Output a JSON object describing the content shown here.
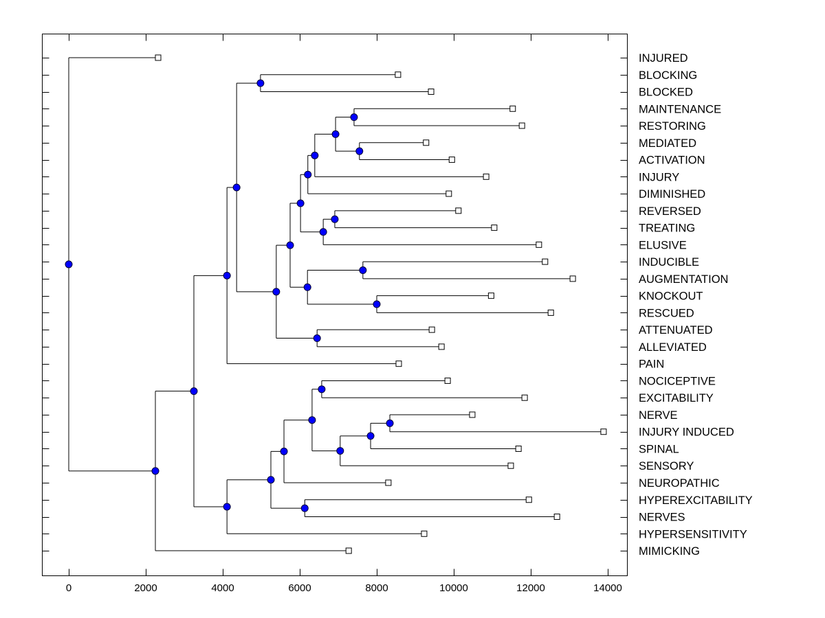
{
  "chart_data": {
    "type": "dendrogram",
    "title": "",
    "xlabel": "",
    "ylabel": "",
    "xlim": [
      -700,
      14500
    ],
    "x_ticks": [
      0,
      2000,
      4000,
      6000,
      8000,
      10000,
      12000,
      14000
    ],
    "x_tick_labels": [
      "0",
      "2000",
      "4000",
      "6000",
      "8000",
      "10000",
      "12000",
      "14000"
    ],
    "grid": false,
    "leaf_labels": [
      "INJURED",
      "BLOCKING",
      "BLOCKED",
      "MAINTENANCE",
      "RESTORING",
      "MEDIATED",
      "ACTIVATION",
      "INJURY",
      "DIMINISHED",
      "REVERSED",
      "TREATING",
      "ELUSIVE",
      "INDUCIBLE",
      "AUGMENTATION",
      "KNOCKOUT",
      "RESCUED",
      "ATTENUATED",
      "ALLEVIATED",
      "PAIN",
      "NOCICEPTIVE",
      "EXCITABILITY",
      "NERVE",
      "INJURY INDUCED",
      "SPINAL",
      "SENSORY",
      "NEUROPATHIC",
      "HYPEREXCITABILITY",
      "NERVES",
      "HYPERSENSITIVITY",
      "MIMICKING"
    ],
    "leaf_values": [
      2250,
      8480,
      9340,
      11460,
      11700,
      9210,
      9880,
      10770,
      9800,
      10050,
      10980,
      12140,
      12300,
      13020,
      10900,
      12450,
      9360,
      9610,
      8500,
      9770,
      11770,
      10410,
      13820,
      11610,
      11410,
      8230,
      11880,
      12610,
      9160,
      7200
    ],
    "tree": {
      "x": 0,
      "children": [
        {
          "leaf": 0
        },
        {
          "x": 2250,
          "children": [
            {
              "x": 3250,
              "children": [
                {
                  "x": 4110,
                  "children": [
                    {
                      "x": 4360,
                      "children": [
                        {
                          "x": 4980,
                          "children": [
                            {
                              "leaf": 1
                            },
                            {
                              "leaf": 2
                            }
                          ]
                        },
                        {
                          "x": 5390,
                          "children": [
                            {
                              "x": 5750,
                              "children": [
                                {
                                  "x": 6020,
                                  "children": [
                                    {
                                      "x": 6210,
                                      "children": [
                                        {
                                          "x": 6390,
                                          "children": [
                                            {
                                              "x": 6930,
                                              "children": [
                                                {
                                                  "x": 7410,
                                                  "children": [
                                                    {
                                                      "leaf": 3
                                                    },
                                                    {
                                                      "leaf": 4
                                                    }
                                                  ]
                                                },
                                                {
                                                  "x": 7550,
                                                  "children": [
                                                    {
                                                      "leaf": 5
                                                    },
                                                    {
                                                      "leaf": 6
                                                    }
                                                  ]
                                                }
                                              ]
                                            },
                                            {
                                              "leaf": 7
                                            }
                                          ]
                                        },
                                        {
                                          "leaf": 8
                                        }
                                      ]
                                    },
                                    {
                                      "x": 6610,
                                      "children": [
                                        {
                                          "x": 6910,
                                          "children": [
                                            {
                                              "leaf": 9
                                            },
                                            {
                                              "leaf": 10
                                            }
                                          ]
                                        },
                                        {
                                          "leaf": 11
                                        }
                                      ]
                                    }
                                  ]
                                },
                                {
                                  "x": 6200,
                                  "children": [
                                    {
                                      "x": 7640,
                                      "children": [
                                        {
                                          "leaf": 12
                                        },
                                        {
                                          "leaf": 13
                                        }
                                      ]
                                    },
                                    {
                                      "x": 8000,
                                      "children": [
                                        {
                                          "leaf": 14
                                        },
                                        {
                                          "leaf": 15
                                        }
                                      ]
                                    }
                                  ]
                                }
                              ]
                            },
                            {
                              "x": 6450,
                              "children": [
                                {
                                  "leaf": 16
                                },
                                {
                                  "leaf": 17
                                }
                              ]
                            }
                          ]
                        }
                      ]
                    },
                    {
                      "leaf": 18
                    }
                  ]
                },
                {
                  "x": 4110,
                  "children": [
                    {
                      "x": 5250,
                      "children": [
                        {
                          "x": 5590,
                          "children": [
                            {
                              "x": 6320,
                              "children": [
                                {
                                  "x": 6570,
                                  "children": [
                                    {
                                      "leaf": 19
                                    },
                                    {
                                      "leaf": 20
                                    }
                                  ]
                                },
                                {
                                  "x": 7050,
                                  "children": [
                                    {
                                      "x": 7840,
                                      "children": [
                                        {
                                          "x": 8340,
                                          "children": [
                                            {
                                              "leaf": 21
                                            },
                                            {
                                              "leaf": 22
                                            }
                                          ]
                                        },
                                        {
                                          "leaf": 23
                                        }
                                      ]
                                    },
                                    {
                                      "leaf": 24
                                    }
                                  ]
                                }
                              ]
                            },
                            {
                              "leaf": 25
                            }
                          ]
                        },
                        {
                          "x": 6130,
                          "children": [
                            {
                              "leaf": 26
                            },
                            {
                              "leaf": 27
                            }
                          ]
                        }
                      ]
                    },
                    {
                      "leaf": 28
                    }
                  ]
                }
              ]
            },
            {
              "leaf": 29
            }
          ]
        }
      ]
    },
    "colors": {
      "node_fill": "#0000ff",
      "node_stroke": "#000033",
      "leaf_fill": "#ffffff",
      "line": "#000000"
    }
  }
}
